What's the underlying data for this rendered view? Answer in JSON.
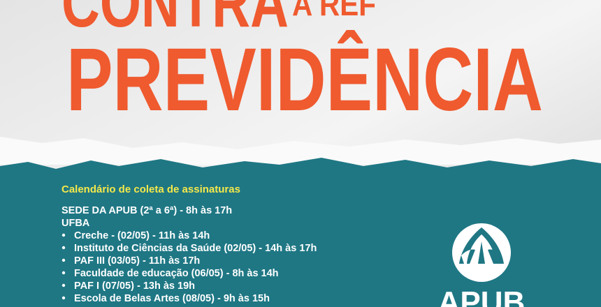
{
  "header": {
    "line1": "CONTRA",
    "line2": "A REF",
    "line3": "PREVIDÊNCIA"
  },
  "calendar": {
    "heading": "Calendário de coleta de assinaturas",
    "lines": [
      "SEDE DA APUB (2ª a 6ª) -  8h às 17h",
      "UFBA"
    ],
    "items": [
      "Creche - (02/05) -  11h às 14h",
      "Instituto de Ciências da Saúde  (02/05) - 14h às 17h",
      "PAF III (03/05) - 11h às 17h",
      "Faculdade de educação (06/05) - 8h às 14h",
      "PAF I (07/05)  - 13h às 19h",
      "Escola de Belas Artes (08/05) - 9h às 15h"
    ]
  },
  "logo": {
    "text": "APUB"
  }
}
